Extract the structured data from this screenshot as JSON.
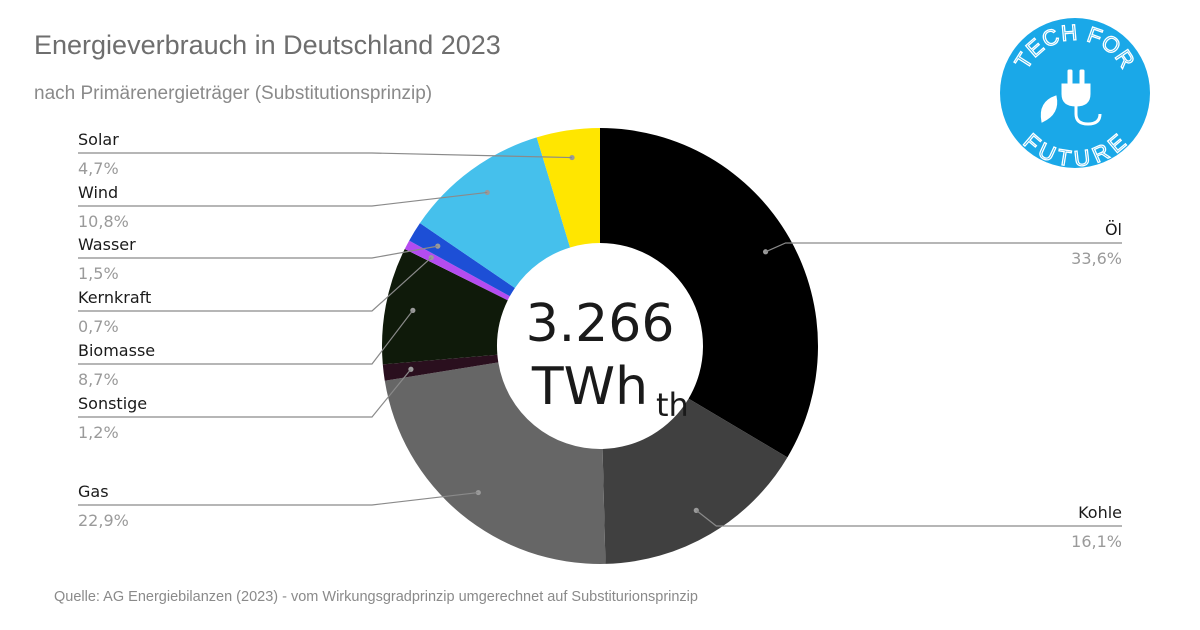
{
  "title": "Energieverbrauch in Deutschland 2023",
  "subtitle": "nach Primärenergieträger (Substitutionsprinzip)",
  "source": "Quelle: AG Energiebilanzen (2023) - vom Wirkungsgradprinzip umgerechnet auf Substiturionsprinzip",
  "logo": {
    "text_top": "TECH FOR",
    "text_bottom": "FUTURE",
    "color": "#1aa8e8",
    "icon": "plug-leaf-icon"
  },
  "center": {
    "value": "3.266",
    "unit": "TWh",
    "unit_sub": "th"
  },
  "chart_data": {
    "type": "pie",
    "subtype": "donut",
    "title": "Energieverbrauch in Deutschland 2023",
    "subtitle": "nach Primärenergieträger (Substitutionsprinzip)",
    "total": "3.266 TWhth",
    "slices": [
      {
        "name": "Öl",
        "label": "33,6%",
        "value": 33.6,
        "color": "#000000"
      },
      {
        "name": "Kohle",
        "label": "16,1%",
        "value": 16.1,
        "color": "#404040"
      },
      {
        "name": "Gas",
        "label": "22,9%",
        "value": 22.9,
        "color": "#666666"
      },
      {
        "name": "Sonstige",
        "label": "1,2%",
        "value": 1.2,
        "color": "#2a0f1e"
      },
      {
        "name": "Biomasse",
        "label": "8,7%",
        "value": 8.7,
        "color": "#0f1a0a"
      },
      {
        "name": "Kernkraft",
        "label": "0,7%",
        "value": 0.7,
        "color": "#b44cf0"
      },
      {
        "name": "Wasser",
        "label": "1,5%",
        "value": 1.5,
        "color": "#1d4fd6"
      },
      {
        "name": "Wind",
        "label": "10,8%",
        "value": 10.8,
        "color": "#45c0ec"
      },
      {
        "name": "Solar",
        "label": "4,7%",
        "value": 4.7,
        "color": "#ffe600"
      }
    ]
  }
}
